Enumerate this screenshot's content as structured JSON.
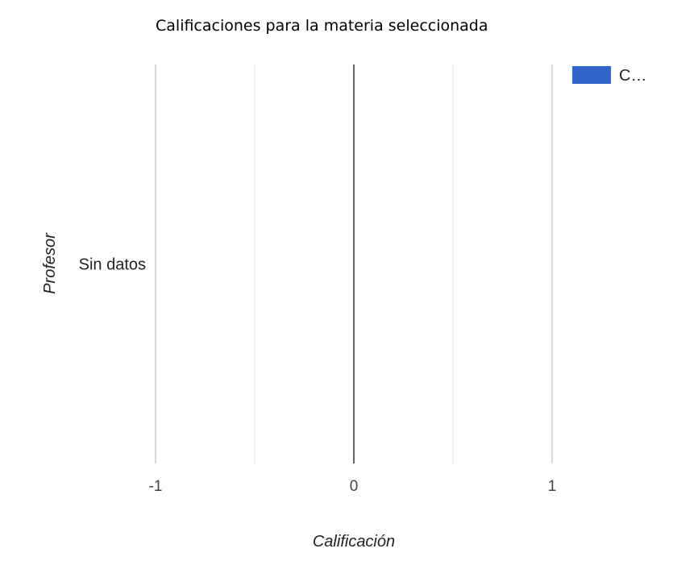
{
  "chart_data": {
    "type": "bar",
    "orientation": "horizontal",
    "title": "Calificaciones para la materia seleccionada",
    "xlabel": "Calificación",
    "ylabel": "Profesor",
    "categories": [
      "Sin datos"
    ],
    "series": [
      {
        "name": "C…",
        "values": [
          0
        ],
        "color": "#3366cc"
      }
    ],
    "xlim": [
      -1,
      1
    ],
    "x_ticks": [
      -1,
      0,
      1
    ],
    "x_tick_labels": [
      "-1",
      "0",
      "1"
    ],
    "grid": true,
    "legend_position": "top-right",
    "colors": {
      "series": "#3366cc",
      "major_grid": "#cccccc",
      "minor_grid": "#ebebeb",
      "baseline": "#333333"
    }
  }
}
